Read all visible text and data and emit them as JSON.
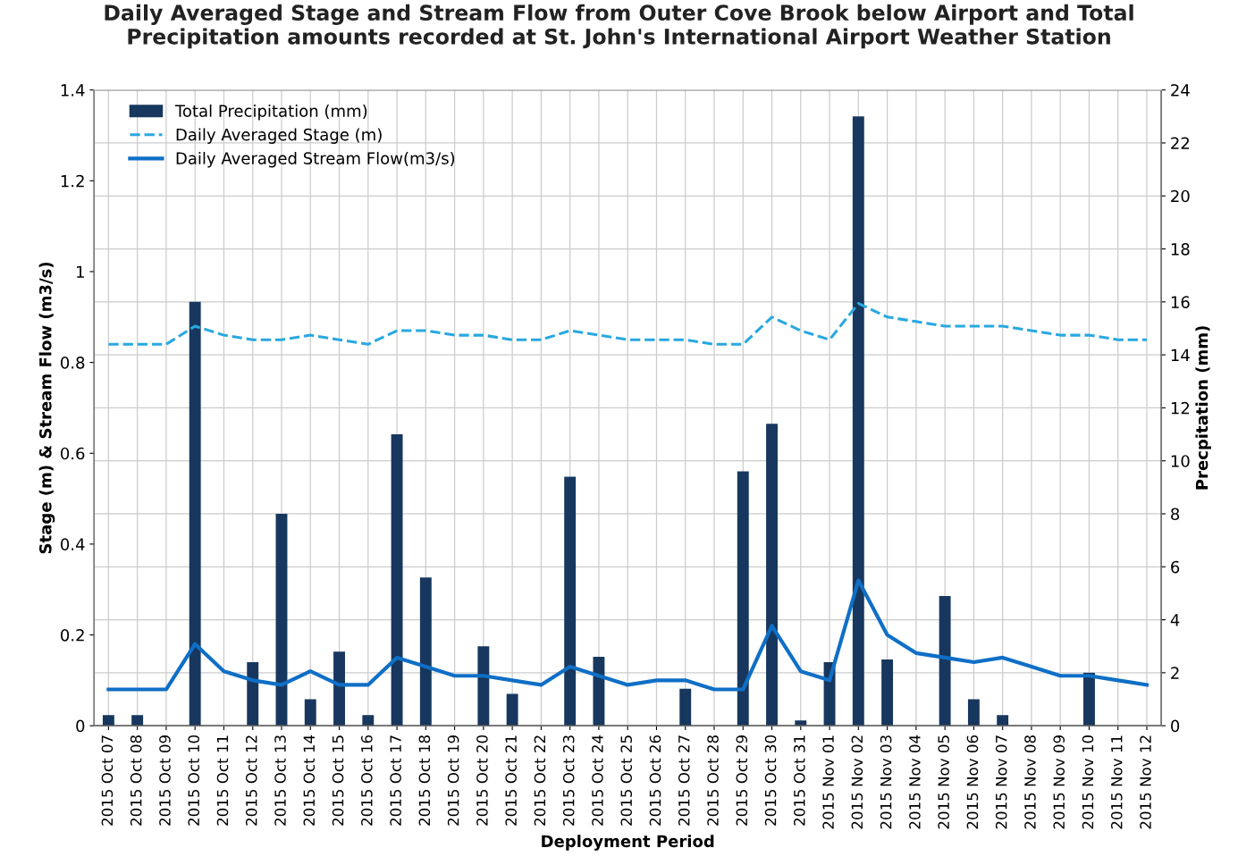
{
  "chart_data": {
    "type": "bar",
    "title": "Daily Averaged Stage and Stream Flow from Outer Cove Brook below Airport and Total\nPrecipitation amounts recorded at St. John's International Airport Weather Station",
    "xlabel": "Deployment Period",
    "ylabel": "Stage (m) & Stream Flow (m3/s)",
    "y2label": "Precpitation (mm)",
    "categories": [
      "2015 Oct 07",
      "2015 Oct 08",
      "2015 Oct 09",
      "2015 Oct 10",
      "2015 Oct 11",
      "2015 Oct 12",
      "2015 Oct 13",
      "2015 Oct 14",
      "2015 Oct 15",
      "2015 Oct 16",
      "2015 Oct 17",
      "2015 Oct 18",
      "2015 Oct 19",
      "2015 Oct 20",
      "2015 Oct 21",
      "2015 Oct 22",
      "2015 Oct 23",
      "2015 Oct 24",
      "2015 Oct 25",
      "2015 Oct 26",
      "2015 Oct 27",
      "2015 Oct 28",
      "2015 Oct 29",
      "2015 Oct 30",
      "2015 Oct 31",
      "2015 Nov 01",
      "2015 Nov 02",
      "2015 Nov 03",
      "2015 Nov 04",
      "2015 Nov 05",
      "2015 Nov 06",
      "2015 Nov 07",
      "2015 Nov 08",
      "2015 Nov 09",
      "2015 Nov 10",
      "2015 Nov 11",
      "2015 Nov 12"
    ],
    "series": [
      {
        "name": "Total Precipitation (mm)",
        "axis": "y2",
        "color": "#17375e",
        "values": [
          0.4,
          0.4,
          0,
          16.0,
          0,
          2.4,
          8.0,
          1.0,
          2.8,
          0.4,
          11.0,
          5.6,
          0,
          3.0,
          1.2,
          0,
          9.4,
          2.6,
          0,
          0,
          1.4,
          0,
          9.6,
          11.4,
          0.2,
          2.4,
          23.0,
          2.5,
          0,
          4.9,
          1.0,
          0.4,
          0,
          0,
          2.0,
          0,
          0
        ]
      },
      {
        "name": "Daily Averaged Stage (m)",
        "type": "line",
        "line_style": "dashed",
        "color": "#29a8e0",
        "values": [
          0.84,
          0.84,
          0.84,
          0.88,
          0.86,
          0.85,
          0.85,
          0.86,
          0.85,
          0.84,
          0.87,
          0.87,
          0.86,
          0.86,
          0.85,
          0.85,
          0.87,
          0.86,
          0.85,
          0.85,
          0.85,
          0.84,
          0.84,
          0.9,
          0.87,
          0.85,
          0.93,
          0.9,
          0.89,
          0.88,
          0.88,
          0.88,
          0.87,
          0.86,
          0.86,
          0.85,
          0.85
        ]
      },
      {
        "name": "Daily Averaged Stream Flow(m3/s)",
        "type": "line",
        "line_style": "solid",
        "color": "#0f6fc6",
        "values": [
          0.08,
          0.08,
          0.08,
          0.18,
          0.12,
          0.1,
          0.09,
          0.12,
          0.09,
          0.09,
          0.15,
          0.13,
          0.11,
          0.11,
          0.1,
          0.09,
          0.13,
          0.11,
          0.09,
          0.1,
          0.1,
          0.08,
          0.08,
          0.22,
          0.12,
          0.1,
          0.32,
          0.2,
          0.16,
          0.15,
          0.14,
          0.15,
          0.13,
          0.11,
          0.11,
          0.1,
          0.09
        ]
      }
    ],
    "ylim": [
      0,
      1.4
    ],
    "yticks": [
      0,
      0.2,
      0.4,
      0.6,
      0.8,
      1,
      1.2,
      1.4
    ],
    "y2lim": [
      0,
      24
    ],
    "y2ticks": [
      0,
      2,
      4,
      6,
      8,
      10,
      12,
      14,
      16,
      18,
      20,
      22,
      24
    ],
    "grid": true,
    "legend": "top left",
    "marker": "none"
  }
}
